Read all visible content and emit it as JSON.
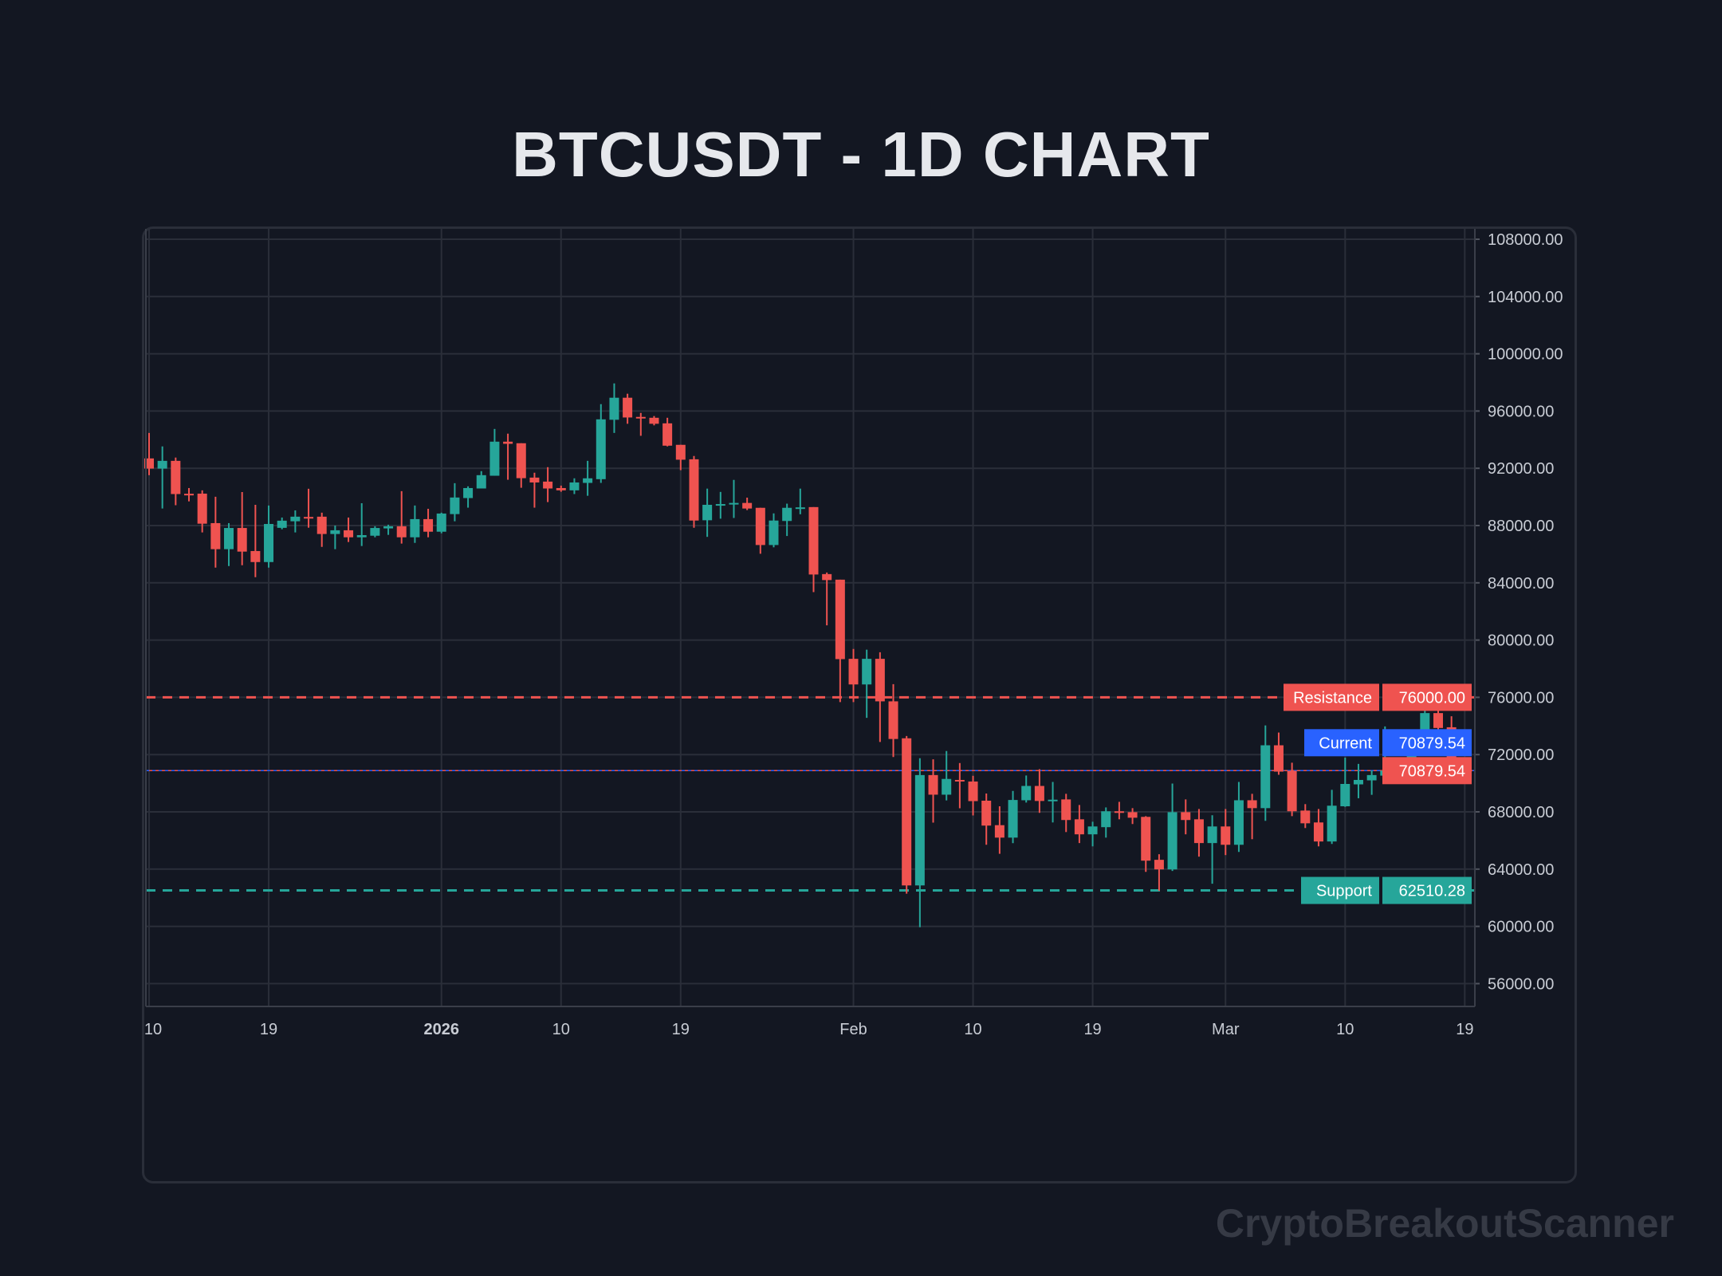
{
  "title": "BTCUSDT - 1D CHART",
  "watermark": "CryptoBreakoutScanner",
  "colors": {
    "background": "#131722",
    "up": "#26a69a",
    "down": "#ef5350",
    "current": "#2962ff",
    "grid": "#2a2e39",
    "axis_text": "#c8ccd4"
  },
  "chart_data": {
    "type": "candlestick",
    "symbol": "BTCUSDT",
    "interval": "1D",
    "ylim": [
      54500,
      109000
    ],
    "grid": true,
    "y_ticks": [
      "56000.00",
      "60000.00",
      "64000.00",
      "68000.00",
      "72000.00",
      "76000.00",
      "80000.00",
      "84000.00",
      "88000.00",
      "92000.00",
      "96000.00",
      "100000.00",
      "104000.00",
      "108000.00"
    ],
    "x_ticks": [
      {
        "date": "2025-12-10",
        "label": "10",
        "bold": false
      },
      {
        "date": "2025-12-19",
        "label": "19",
        "bold": false
      },
      {
        "date": "2026-01-01",
        "label": "2026",
        "bold": true
      },
      {
        "date": "2026-01-10",
        "label": "10",
        "bold": false
      },
      {
        "date": "2026-01-19",
        "label": "19",
        "bold": false
      },
      {
        "date": "2026-02-01",
        "label": "Feb",
        "bold": false
      },
      {
        "date": "2026-02-10",
        "label": "10",
        "bold": false
      },
      {
        "date": "2026-02-19",
        "label": "19",
        "bold": false
      },
      {
        "date": "2026-03-01",
        "label": "Mar",
        "bold": false
      },
      {
        "date": "2026-03-10",
        "label": "10",
        "bold": false
      },
      {
        "date": "2026-03-19",
        "label": "19",
        "bold": false
      }
    ],
    "levels": {
      "resistance": {
        "label": "Resistance",
        "value": 76000.0,
        "text": "76000.00"
      },
      "current": {
        "label": "Current",
        "value": 70879.54,
        "text": "70879.54"
      },
      "last_price": {
        "value": 70879.54,
        "text": "70879.54"
      },
      "support": {
        "label": "Support",
        "value": 62510.28,
        "text": "62510.28"
      }
    },
    "ohlc_columns": [
      "open",
      "high",
      "low",
      "close"
    ],
    "start_date": "2025-12-10",
    "candles": [
      [
        92690,
        94470,
        91520,
        91980
      ],
      [
        91980,
        93530,
        89190,
        92520
      ],
      [
        92520,
        92750,
        89420,
        90200
      ],
      [
        90220,
        90620,
        89690,
        90200
      ],
      [
        90230,
        90460,
        87520,
        88130
      ],
      [
        88170,
        90010,
        85060,
        86350
      ],
      [
        86350,
        88170,
        85170,
        87830
      ],
      [
        87830,
        90340,
        85230,
        86180
      ],
      [
        86220,
        89450,
        84390,
        85450
      ],
      [
        85450,
        89400,
        85060,
        88110
      ],
      [
        87840,
        88560,
        87740,
        88340
      ],
      [
        88300,
        89060,
        87520,
        88620
      ],
      [
        88600,
        90570,
        87850,
        88570
      ],
      [
        88620,
        88900,
        86510,
        87410
      ],
      [
        87410,
        88000,
        86350,
        87670
      ],
      [
        87670,
        88560,
        86850,
        87180
      ],
      [
        87180,
        89560,
        86570,
        87330
      ],
      [
        87290,
        87950,
        87180,
        87830
      ],
      [
        87800,
        88060,
        87350,
        87950
      ],
      [
        87950,
        90400,
        86740,
        87180
      ],
      [
        87180,
        89400,
        86790,
        88450
      ],
      [
        88450,
        89170,
        87180,
        87570
      ],
      [
        87570,
        88900,
        87460,
        88840
      ],
      [
        88800,
        90960,
        88300,
        89960
      ],
      [
        89920,
        90740,
        89250,
        90620
      ],
      [
        90590,
        91800,
        90590,
        91520
      ],
      [
        91480,
        94750,
        91480,
        93860
      ],
      [
        93860,
        94420,
        91200,
        93710
      ],
      [
        93750,
        93750,
        90640,
        91310
      ],
      [
        91350,
        91690,
        89250,
        91010
      ],
      [
        91070,
        92080,
        89640,
        90590
      ],
      [
        90620,
        90790,
        90360,
        90460
      ],
      [
        90460,
        91300,
        90200,
        91010
      ],
      [
        90980,
        92520,
        90080,
        91300
      ],
      [
        91240,
        96480,
        90980,
        95420
      ],
      [
        95390,
        97930,
        94470,
        96930
      ],
      [
        96930,
        97210,
        95110,
        95550
      ],
      [
        95590,
        95870,
        94270,
        95520
      ],
      [
        95530,
        95650,
        95000,
        95110
      ],
      [
        95140,
        95530,
        93530,
        93580
      ],
      [
        93640,
        93640,
        91870,
        92600
      ],
      [
        92630,
        92860,
        87850,
        88350
      ],
      [
        88370,
        90580,
        87210,
        89450
      ],
      [
        89480,
        90350,
        88480,
        89500
      ],
      [
        89550,
        91190,
        88530,
        89580
      ],
      [
        89580,
        89950,
        89080,
        89190
      ],
      [
        89240,
        89240,
        86030,
        86640
      ],
      [
        86640,
        88850,
        86480,
        88350
      ],
      [
        88320,
        89530,
        87270,
        89240
      ],
      [
        89240,
        90580,
        88790,
        89270
      ],
      [
        89290,
        89290,
        83350,
        84580
      ],
      [
        84610,
        84720,
        81030,
        84190
      ],
      [
        84220,
        84220,
        75670,
        78670
      ],
      [
        78690,
        79380,
        75670,
        76900
      ],
      [
        76900,
        79330,
        74570,
        78690
      ],
      [
        78690,
        79150,
        72880,
        75720
      ],
      [
        75720,
        76920,
        71830,
        73090
      ],
      [
        73140,
        73300,
        62280,
        62860
      ],
      [
        62860,
        71750,
        59940,
        70570
      ],
      [
        70570,
        71670,
        67250,
        69200
      ],
      [
        69200,
        72250,
        68800,
        70300
      ],
      [
        70230,
        71410,
        68250,
        70170
      ],
      [
        70120,
        70520,
        67750,
        68750
      ],
      [
        68780,
        69280,
        65700,
        67040
      ],
      [
        67070,
        68390,
        65070,
        66200
      ],
      [
        66200,
        69460,
        65810,
        68830
      ],
      [
        68810,
        70540,
        68650,
        69810
      ],
      [
        69810,
        70980,
        67930,
        68760
      ],
      [
        68830,
        70090,
        67260,
        68850
      ],
      [
        68870,
        69260,
        66590,
        67430
      ],
      [
        67480,
        68480,
        65820,
        66430
      ],
      [
        66430,
        67310,
        65590,
        66980
      ],
      [
        66930,
        68310,
        66200,
        68040
      ],
      [
        68040,
        68700,
        67480,
        68000
      ],
      [
        67980,
        68260,
        67150,
        67590
      ],
      [
        67650,
        67700,
        63810,
        64590
      ],
      [
        64650,
        65040,
        62480,
        63980
      ],
      [
        63980,
        69980,
        63870,
        67980
      ],
      [
        67980,
        68870,
        66430,
        67430
      ],
      [
        67480,
        68200,
        64870,
        65820
      ],
      [
        65820,
        67760,
        62980,
        66980
      ],
      [
        66980,
        68200,
        64980,
        65700
      ],
      [
        65700,
        70090,
        65200,
        68810
      ],
      [
        68810,
        69260,
        66090,
        68260
      ],
      [
        68260,
        74040,
        67370,
        72650
      ],
      [
        72650,
        73540,
        70590,
        70810
      ],
      [
        70870,
        71430,
        67700,
        68040
      ],
      [
        68090,
        68540,
        66870,
        67200
      ],
      [
        67260,
        68200,
        65590,
        65930
      ],
      [
        65930,
        69540,
        65760,
        68430
      ],
      [
        68390,
        71790,
        68350,
        69950
      ],
      [
        69920,
        71350,
        68950,
        70230
      ],
      [
        70200,
        70900,
        69190,
        70570
      ],
      [
        70530,
        73970,
        70360,
        70880
      ],
      [
        70960,
        71350,
        70310,
        71240
      ],
      [
        71200,
        73210,
        70900,
        72840
      ],
      [
        72840,
        75400,
        72260,
        74900
      ],
      [
        74900,
        75800,
        73380,
        73860
      ],
      [
        73910,
        74680,
        70470,
        71250
      ],
      [
        71250,
        71630,
        70640,
        70879.54
      ]
    ]
  }
}
